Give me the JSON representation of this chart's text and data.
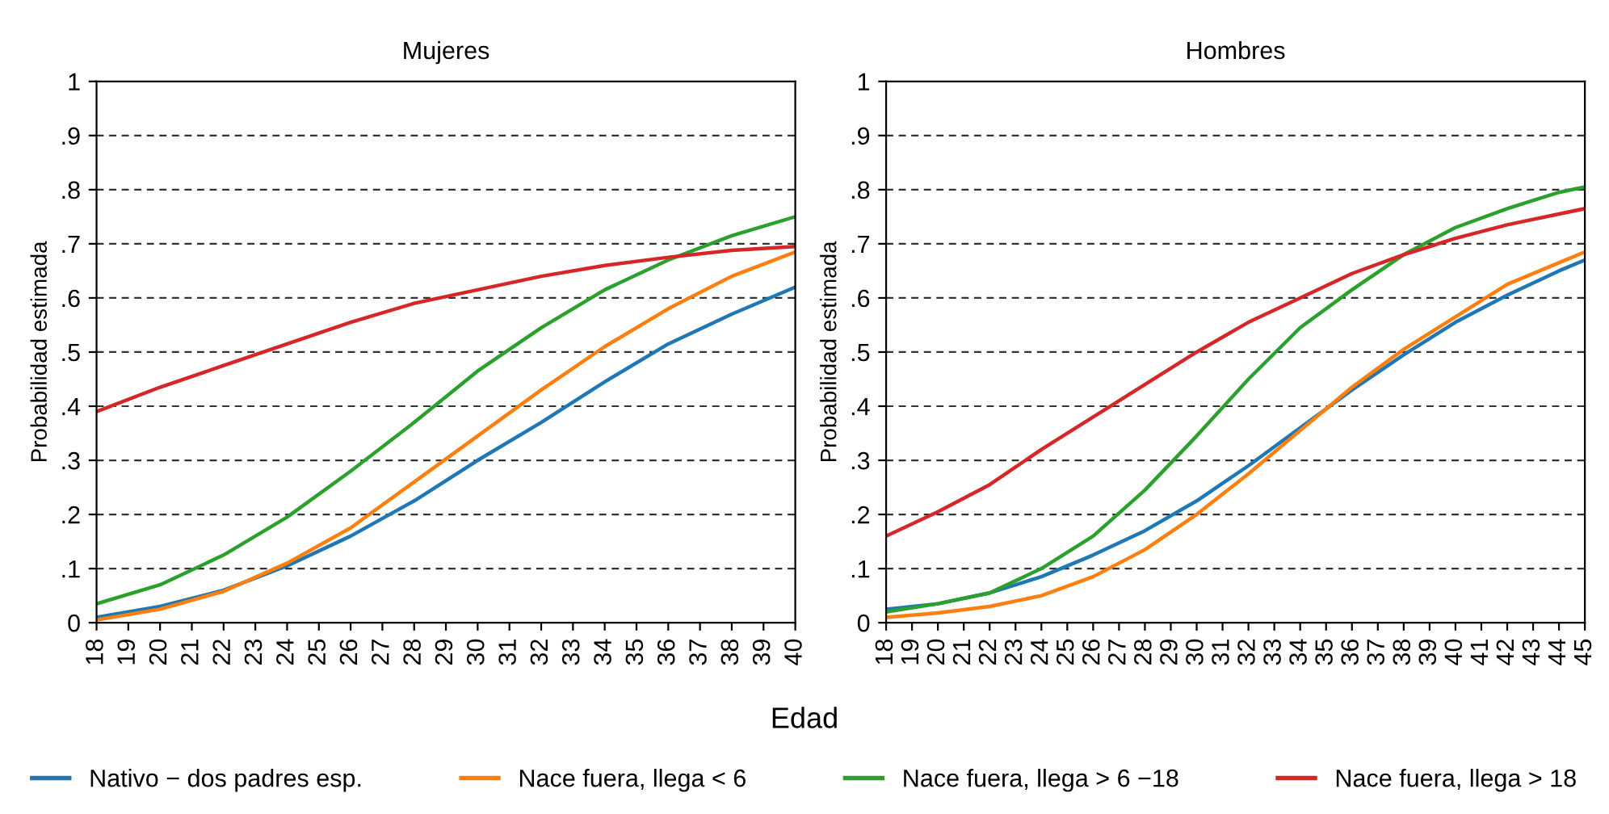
{
  "chart_data": [
    {
      "type": "line",
      "title": "Mujeres",
      "ylabel": "Probabilidad estimada",
      "xlabel": "Edad",
      "legend": "bottom",
      "grid": "y",
      "marker": "none",
      "line_style": "solid",
      "x": [
        18,
        20,
        22,
        24,
        26,
        28,
        30,
        32,
        34,
        36,
        38,
        40
      ],
      "xlim": [
        18,
        40
      ],
      "xticks": [
        18,
        19,
        20,
        21,
        22,
        23,
        24,
        25,
        26,
        27,
        28,
        29,
        30,
        31,
        32,
        33,
        34,
        35,
        36,
        37,
        38,
        39,
        40
      ],
      "ylim": [
        0,
        1
      ],
      "yticks": [
        0,
        {
          "value": 0.1,
          "label": ".1"
        },
        {
          "value": 0.2,
          "label": ".2"
        },
        {
          "value": 0.3,
          "label": ".3"
        },
        {
          "value": 0.4,
          "label": ".4"
        },
        {
          "value": 0.5,
          "label": ".5"
        },
        {
          "value": 0.6,
          "label": ".6"
        },
        {
          "value": 0.7,
          "label": ".7"
        },
        {
          "value": 0.8,
          "label": ".8"
        },
        {
          "value": 0.9,
          "label": ".9"
        },
        1
      ],
      "series": [
        {
          "name": "Nativo − dos padres esp.",
          "color": "#1f77b4",
          "values": [
            0.01,
            0.03,
            0.06,
            0.105,
            0.16,
            0.225,
            0.3,
            0.37,
            0.445,
            0.515,
            0.57,
            0.62
          ]
        },
        {
          "name": "Nace fuera, llega < 6",
          "color": "#ff7f0e",
          "values": [
            0.005,
            0.025,
            0.058,
            0.11,
            0.175,
            0.26,
            0.345,
            0.43,
            0.51,
            0.58,
            0.64,
            0.685
          ]
        },
        {
          "name": "Nace fuera, llega > 6 −18",
          "color": "#2ca02c",
          "values": [
            0.035,
            0.07,
            0.125,
            0.195,
            0.28,
            0.37,
            0.465,
            0.545,
            0.615,
            0.67,
            0.715,
            0.75
          ]
        },
        {
          "name": "Nace fuera, llega > 18",
          "color": "#d62728",
          "values": [
            0.39,
            0.435,
            0.475,
            0.515,
            0.555,
            0.59,
            0.615,
            0.64,
            0.66,
            0.675,
            0.688,
            0.695
          ]
        }
      ]
    },
    {
      "type": "line",
      "title": "Hombres",
      "ylabel": "Probabilidad estimada",
      "grid": "y",
      "marker": "none",
      "line_style": "solid",
      "x": [
        18,
        20,
        22,
        24,
        26,
        28,
        30,
        32,
        34,
        36,
        38,
        40,
        42,
        44,
        45
      ],
      "xlim": [
        18,
        45
      ],
      "xticks": [
        18,
        19,
        20,
        21,
        22,
        23,
        24,
        25,
        26,
        27,
        28,
        29,
        30,
        31,
        32,
        33,
        34,
        35,
        36,
        37,
        38,
        39,
        40,
        41,
        42,
        43,
        44,
        45
      ],
      "ylim": [
        0,
        1
      ],
      "yticks": [
        0,
        {
          "value": 0.1,
          "label": ".1"
        },
        {
          "value": 0.2,
          "label": ".2"
        },
        {
          "value": 0.3,
          "label": ".3"
        },
        {
          "value": 0.4,
          "label": ".4"
        },
        {
          "value": 0.5,
          "label": ".5"
        },
        {
          "value": 0.6,
          "label": ".6"
        },
        {
          "value": 0.7,
          "label": ".7"
        },
        {
          "value": 0.8,
          "label": ".8"
        },
        {
          "value": 0.9,
          "label": ".9"
        },
        1
      ],
      "series": [
        {
          "color": "#1f77b4",
          "values": [
            0.025,
            0.035,
            0.055,
            0.085,
            0.125,
            0.17,
            0.225,
            0.29,
            0.36,
            0.43,
            0.495,
            0.555,
            0.605,
            0.65,
            0.67
          ]
        },
        {
          "color": "#ff7f0e",
          "values": [
            0.01,
            0.018,
            0.03,
            0.05,
            0.085,
            0.135,
            0.2,
            0.275,
            0.355,
            0.435,
            0.505,
            0.565,
            0.625,
            0.665,
            0.685
          ]
        },
        {
          "color": "#2ca02c",
          "values": [
            0.02,
            0.035,
            0.055,
            0.1,
            0.16,
            0.245,
            0.345,
            0.45,
            0.545,
            0.615,
            0.68,
            0.73,
            0.765,
            0.795,
            0.805
          ]
        },
        {
          "color": "#d62728",
          "values": [
            0.16,
            0.205,
            0.255,
            0.32,
            0.38,
            0.44,
            0.5,
            0.555,
            0.6,
            0.645,
            0.68,
            0.71,
            0.735,
            0.755,
            0.765
          ]
        }
      ]
    }
  ]
}
